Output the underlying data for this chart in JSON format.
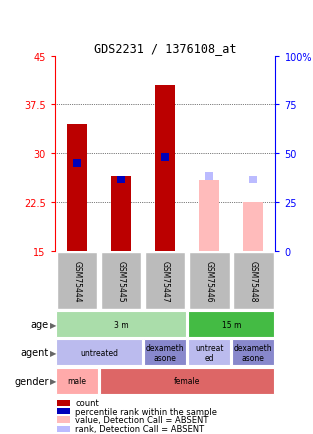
{
  "title": "GDS2231 / 1376108_at",
  "samples": [
    "GSM75444",
    "GSM75445",
    "GSM75447",
    "GSM75446",
    "GSM75448"
  ],
  "ylim_left": [
    15,
    45
  ],
  "ylim_right": [
    0,
    100
  ],
  "yticks_left": [
    15,
    22.5,
    30,
    37.5,
    45
  ],
  "yticks_right": [
    0,
    25,
    50,
    75,
    100
  ],
  "count_values": [
    34.5,
    26.5,
    40.5,
    null,
    null
  ],
  "rank_values": [
    28.5,
    26.0,
    29.5,
    null,
    null
  ],
  "count_absent": [
    null,
    null,
    null,
    26.0,
    22.5
  ],
  "rank_absent": [
    null,
    null,
    null,
    26.5,
    26.0
  ],
  "count_color": "#bb0000",
  "rank_color": "#0000bb",
  "count_absent_color": "#ffbbbb",
  "rank_absent_color": "#bbbbff",
  "bar_width": 0.45,
  "rank_bar_width": 0.18,
  "sample_bg_color": "#bbbbbb",
  "age_3m_color": "#aaddaa",
  "age_15m_color": "#44bb44",
  "agent_untreated_color": "#bbbbee",
  "agent_dex_color": "#8888cc",
  "gender_male_color": "#ffaaaa",
  "gender_female_color": "#dd6666",
  "row_labels": [
    "age",
    "agent",
    "gender"
  ],
  "legend_items": [
    {
      "color": "#bb0000",
      "label": "count"
    },
    {
      "color": "#0000bb",
      "label": "percentile rank within the sample"
    },
    {
      "color": "#ffbbbb",
      "label": "value, Detection Call = ABSENT"
    },
    {
      "color": "#bbbbff",
      "label": "rank, Detection Call = ABSENT"
    }
  ]
}
